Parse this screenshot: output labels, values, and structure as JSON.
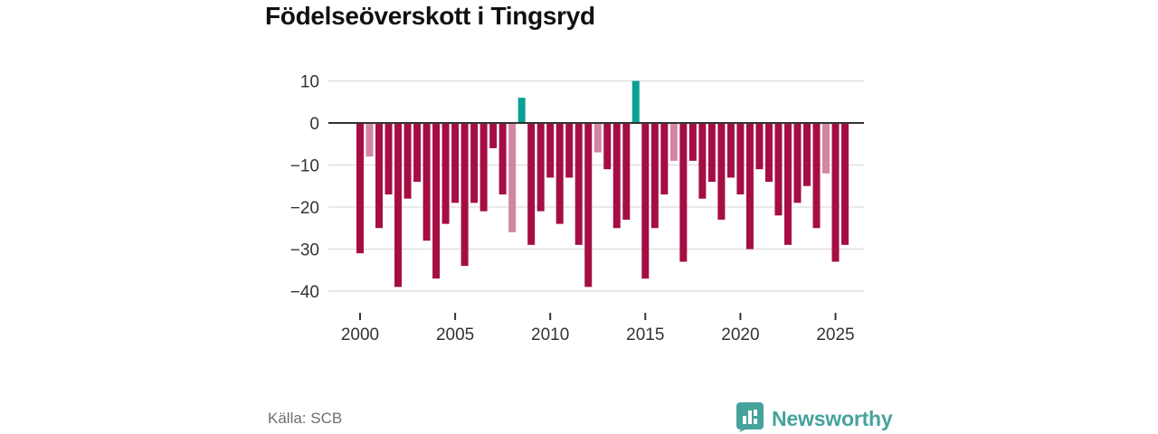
{
  "title": "Födelseöverskott i Tingsryd",
  "source": "Källa: SCB",
  "brand": {
    "name": "Newsworthy",
    "logo_icon": "bar-chart-speech-bubble-icon"
  },
  "colors": {
    "negative_bar": "#a50d45",
    "negative_bar_light": "#d286a2",
    "positive_bar": "#0aa096",
    "grid": "#dcdcdc",
    "zero_line": "#333333",
    "axis_text": "#333333",
    "title_text": "#111111",
    "source_text": "#6e6e6e",
    "brand_teal": "#46a39c"
  },
  "chart_data": {
    "type": "bar",
    "title": "Födelseöverskott i Tingsryd",
    "xlabel": "",
    "ylabel": "",
    "ylim": [
      -42,
      12
    ],
    "grid": true,
    "legend_position": "none",
    "yticks": [
      {
        "label": "10",
        "value": 10
      },
      {
        "label": "0",
        "value": 0
      },
      {
        "label": "−10",
        "value": -10
      },
      {
        "label": "−20",
        "value": -20
      },
      {
        "label": "−30",
        "value": -30
      },
      {
        "label": "−40",
        "value": -40
      }
    ],
    "xticks": [
      {
        "label": "2000",
        "year": 2000
      },
      {
        "label": "2005",
        "year": 2005
      },
      {
        "label": "2010",
        "year": 2010
      },
      {
        "label": "2015",
        "year": 2015
      },
      {
        "label": "2020",
        "year": 2020
      },
      {
        "label": "2025",
        "year": 2025
      }
    ],
    "period_type": "half-year",
    "categories": [
      "2000 H1",
      "2000 H2",
      "2001 H1",
      "2001 H2",
      "2002 H1",
      "2002 H2",
      "2003 H1",
      "2003 H2",
      "2004 H1",
      "2004 H2",
      "2005 H1",
      "2005 H2",
      "2006 H1",
      "2006 H2",
      "2007 H1",
      "2007 H2",
      "2008 H1",
      "2008 H2",
      "2009 H1",
      "2009 H2",
      "2010 H1",
      "2010 H2",
      "2011 H1",
      "2011 H2",
      "2012 H1",
      "2012 H2",
      "2013 H1",
      "2013 H2",
      "2014 H1",
      "2014 H2",
      "2015 H1",
      "2015 H2",
      "2016 H1",
      "2016 H2",
      "2017 H1",
      "2017 H2",
      "2018 H1",
      "2018 H2",
      "2019 H1",
      "2019 H2",
      "2020 H1",
      "2020 H2",
      "2021 H1",
      "2021 H2",
      "2022 H1",
      "2022 H2",
      "2023 H1",
      "2023 H2",
      "2024 H1",
      "2024 H2",
      "2025 H1",
      "2025 H2"
    ],
    "values": [
      -31,
      -8,
      -25,
      -17,
      -39,
      -18,
      -14,
      -28,
      -37,
      -24,
      -19,
      -34,
      -19,
      -21,
      -6,
      -17,
      -26,
      6,
      -29,
      -21,
      -13,
      -24,
      -13,
      -29,
      -39,
      -7,
      -11,
      -25,
      -23,
      10,
      -37,
      -25,
      -17,
      -9,
      -33,
      -9,
      -18,
      -14,
      -23,
      -13,
      -17,
      -30,
      -11,
      -14,
      -22,
      -29,
      -19,
      -15,
      -25,
      -12,
      -33,
      -29
    ],
    "bar_styles": [
      "d",
      "l",
      "d",
      "d",
      "d",
      "d",
      "d",
      "d",
      "d",
      "d",
      "d",
      "d",
      "d",
      "d",
      "d",
      "d",
      "l",
      "p",
      "d",
      "d",
      "d",
      "d",
      "d",
      "d",
      "d",
      "l",
      "d",
      "d",
      "d",
      "p",
      "d",
      "d",
      "d",
      "l",
      "d",
      "d",
      "d",
      "d",
      "d",
      "d",
      "d",
      "d",
      "d",
      "d",
      "d",
      "d",
      "d",
      "d",
      "d",
      "l",
      "d",
      "d"
    ]
  }
}
